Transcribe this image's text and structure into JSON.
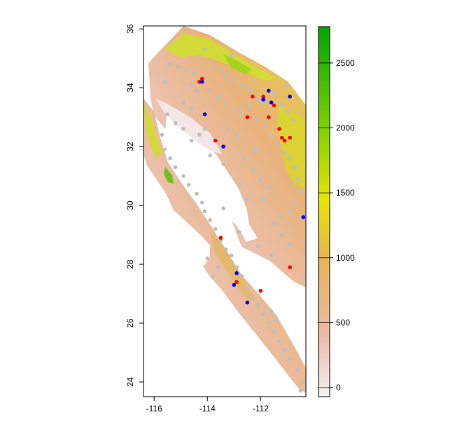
{
  "map": {
    "x_ticks": [
      {
        "value": -116,
        "label": "-116"
      },
      {
        "value": -114,
        "label": "-114"
      },
      {
        "value": -112,
        "label": "-112"
      }
    ],
    "y_ticks": [
      {
        "value": 24,
        "label": "24"
      },
      {
        "value": 26,
        "label": "26"
      },
      {
        "value": 28,
        "label": "28"
      },
      {
        "value": 30,
        "label": "30"
      },
      {
        "value": 32,
        "label": "32"
      },
      {
        "value": 34,
        "label": "34"
      },
      {
        "value": 36,
        "label": "36"
      }
    ],
    "xlim": [
      -116.4,
      -110.3
    ],
    "ylim": [
      23.5,
      36.1
    ],
    "colors": {
      "background": "#ffffff",
      "ocean": "#ffffff",
      "gray_points": "#bebebe",
      "red_points": "#ff0000",
      "blue_points": "#0000ff"
    }
  },
  "legend": {
    "ticks": [
      {
        "value": 0,
        "label": "0"
      },
      {
        "value": 500,
        "label": "500"
      },
      {
        "value": 1000,
        "label": "1000"
      },
      {
        "value": 1500,
        "label": "1500"
      },
      {
        "value": 2000,
        "label": "2000"
      },
      {
        "value": 2500,
        "label": "2500"
      }
    ],
    "range": [
      -70,
      2780
    ],
    "gradient_stops": [
      {
        "value": -70,
        "color": "#f2f2f2"
      },
      {
        "value": 400,
        "color": "#ecb9a9"
      },
      {
        "value": 1000,
        "color": "#e6b356"
      },
      {
        "value": 1450,
        "color": "#e6e600"
      },
      {
        "value": 2000,
        "color": "#7fd000"
      },
      {
        "value": 2780,
        "color": "#00a600"
      }
    ]
  },
  "points": {
    "red": [
      [
        -114.3,
        34.2
      ],
      [
        -114.2,
        34.3
      ],
      [
        -113.7,
        32.2
      ],
      [
        -112.3,
        33.7
      ],
      [
        -111.9,
        33.7
      ],
      [
        -111.7,
        33.0
      ],
      [
        -111.5,
        33.4
      ],
      [
        -111.3,
        32.6
      ],
      [
        -111.2,
        32.3
      ],
      [
        -111.1,
        32.2
      ],
      [
        -110.9,
        32.3
      ],
      [
        -113.5,
        28.9
      ],
      [
        -112.9,
        27.4
      ],
      [
        -112.0,
        27.1
      ],
      [
        -110.9,
        27.9
      ],
      [
        -112.5,
        33.0
      ]
    ],
    "blue": [
      [
        -114.2,
        34.2
      ],
      [
        -114.1,
        33.1
      ],
      [
        -113.4,
        32.0
      ],
      [
        -111.9,
        33.6
      ],
      [
        -111.7,
        33.9
      ],
      [
        -111.6,
        33.5
      ],
      [
        -110.9,
        33.7
      ],
      [
        -110.4,
        29.6
      ],
      [
        -112.9,
        27.7
      ],
      [
        -113.0,
        27.3
      ],
      [
        -112.5,
        26.7
      ]
    ],
    "gray": [
      [
        -115.4,
        34.8
      ],
      [
        -115.1,
        34.7
      ],
      [
        -114.8,
        34.6
      ],
      [
        -114.5,
        34.5
      ],
      [
        -114.6,
        34.1
      ],
      [
        -114.4,
        33.9
      ],
      [
        -114.9,
        33.5
      ],
      [
        -114.6,
        33.3
      ],
      [
        -113.8,
        34.7
      ],
      [
        -113.5,
        34.6
      ],
      [
        -113.3,
        34.4
      ],
      [
        -113.0,
        34.3
      ],
      [
        -112.7,
        34.1
      ],
      [
        -112.4,
        33.9
      ],
      [
        -112.1,
        33.6
      ],
      [
        -111.8,
        33.5
      ],
      [
        -111.5,
        33.8
      ],
      [
        -111.2,
        33.4
      ],
      [
        -111.0,
        33.2
      ],
      [
        -113.9,
        33.9
      ],
      [
        -113.6,
        33.7
      ],
      [
        -113.3,
        33.5
      ],
      [
        -113.0,
        33.3
      ],
      [
        -112.7,
        33.2
      ],
      [
        -112.4,
        33.4
      ],
      [
        -112.1,
        32.9
      ],
      [
        -111.8,
        32.7
      ],
      [
        -111.6,
        32.4
      ],
      [
        -111.4,
        32.1
      ],
      [
        -111.1,
        31.8
      ],
      [
        -110.9,
        31.6
      ],
      [
        -110.7,
        31.3
      ],
      [
        -110.6,
        30.9
      ],
      [
        -110.5,
        30.5
      ],
      [
        -110.7,
        30.1
      ],
      [
        -110.9,
        29.8
      ],
      [
        -111.2,
        29.6
      ],
      [
        -111.5,
        29.4
      ],
      [
        -111.2,
        29.0
      ],
      [
        -110.9,
        28.7
      ],
      [
        -112.6,
        31.6
      ],
      [
        -112.3,
        31.2
      ],
      [
        -112.0,
        30.9
      ],
      [
        -111.7,
        30.6
      ],
      [
        -111.9,
        30.2
      ],
      [
        -112.2,
        31.9
      ],
      [
        -112.9,
        32.4
      ],
      [
        -113.2,
        32.6
      ],
      [
        -114.1,
        32.6
      ],
      [
        -114.3,
        32.4
      ],
      [
        -114.6,
        32.2
      ],
      [
        -114.9,
        32.6
      ],
      [
        -115.2,
        32.8
      ],
      [
        -115.5,
        33.1
      ],
      [
        -115.7,
        32.4
      ],
      [
        -115.6,
        31.9
      ],
      [
        -115.4,
        31.6
      ],
      [
        -115.2,
        31.3
      ],
      [
        -114.9,
        31.0
      ],
      [
        -114.7,
        30.7
      ],
      [
        -114.4,
        30.4
      ],
      [
        -114.2,
        30.1
      ],
      [
        -114.1,
        29.8
      ],
      [
        -113.9,
        29.5
      ],
      [
        -113.7,
        29.2
      ],
      [
        -113.5,
        28.8
      ],
      [
        -113.3,
        28.5
      ],
      [
        -113.1,
        28.3
      ],
      [
        -112.9,
        27.9
      ],
      [
        -112.7,
        27.6
      ],
      [
        -112.5,
        27.2
      ],
      [
        -112.3,
        26.9
      ],
      [
        -112.1,
        26.6
      ],
      [
        -111.9,
        26.3
      ],
      [
        -111.7,
        26.0
      ],
      [
        -111.5,
        25.7
      ],
      [
        -111.3,
        25.4
      ],
      [
        -111.1,
        25.1
      ],
      [
        -110.9,
        24.8
      ],
      [
        -110.6,
        24.4
      ],
      [
        -110.4,
        24.0
      ],
      [
        -110.5,
        23.7
      ],
      [
        -111.6,
        26.4
      ],
      [
        -111.4,
        26.1
      ],
      [
        -113.6,
        27.9
      ],
      [
        -113.8,
        27.6
      ],
      [
        -114.0,
        28.2
      ],
      [
        -113.4,
        29.9
      ],
      [
        -112.8,
        29.1
      ],
      [
        -112.1,
        28.6
      ],
      [
        -111.6,
        28.3
      ],
      [
        -113.9,
        31.7
      ],
      [
        -113.4,
        31.4
      ],
      [
        -112.8,
        30.7
      ],
      [
        -112.5,
        30.2
      ],
      [
        -110.8,
        32.9
      ],
      [
        -111.0,
        34.1
      ],
      [
        -113.1,
        35.1
      ],
      [
        -114.1,
        35.3
      ],
      [
        -115.6,
        34.2
      ]
    ]
  }
}
